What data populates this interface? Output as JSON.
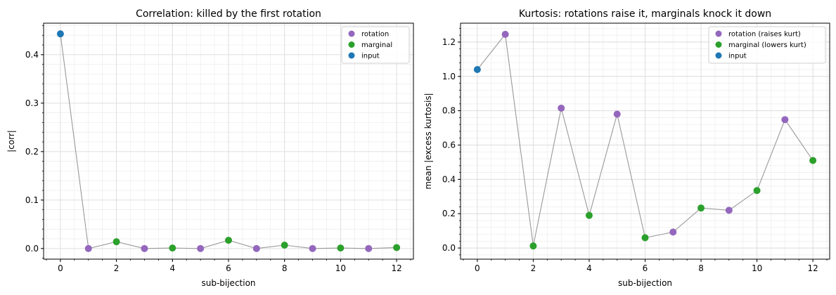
{
  "chart_data": [
    {
      "type": "scatter",
      "title": "Correlation: killed by the first rotation",
      "xlabel": "sub-bijection",
      "ylabel": "|corr|",
      "xlim": [
        -0.6,
        12.6
      ],
      "ylim": [
        -0.022,
        0.465
      ],
      "xticks": [
        0,
        2,
        4,
        6,
        8,
        10,
        12
      ],
      "xtick_labels": [
        "0",
        "2",
        "4",
        "6",
        "8",
        "10",
        "12"
      ],
      "yticks": [
        0.0,
        0.1,
        0.2,
        0.3,
        0.4
      ],
      "ytick_labels": [
        "0.0",
        "0.1",
        "0.2",
        "0.3",
        "0.4"
      ],
      "grid": true,
      "legend": {
        "placement": "top-right",
        "entries": [
          {
            "label": "rotation",
            "color": "#9467bd"
          },
          {
            "label": "marginal",
            "color": "#2ca02c"
          },
          {
            "label": "input",
            "color": "#1f77b4"
          }
        ]
      },
      "line_color": "#999999",
      "x": [
        0,
        1,
        2,
        3,
        4,
        5,
        6,
        7,
        8,
        9,
        10,
        11,
        12
      ],
      "y": [
        0.443,
        0.0,
        0.014,
        0.0,
        0.001,
        0.0,
        0.017,
        0.0,
        0.007,
        0.0,
        0.001,
        0.0,
        0.002
      ],
      "kind": [
        "input",
        "rotation",
        "marginal",
        "rotation",
        "marginal",
        "rotation",
        "marginal",
        "rotation",
        "marginal",
        "rotation",
        "marginal",
        "rotation",
        "marginal"
      ]
    },
    {
      "type": "scatter",
      "title": "Kurtosis: rotations raise it, marginals knock it down",
      "xlabel": "sub-bijection",
      "ylabel": "mean |excess kurtosis|",
      "xlim": [
        -0.6,
        12.6
      ],
      "ylim": [
        -0.065,
        1.31
      ],
      "xticks": [
        0,
        2,
        4,
        6,
        8,
        10,
        12
      ],
      "xtick_labels": [
        "0",
        "2",
        "4",
        "6",
        "8",
        "10",
        "12"
      ],
      "yticks": [
        0.0,
        0.2,
        0.4,
        0.6,
        0.8,
        1.0,
        1.2
      ],
      "ytick_labels": [
        "0.0",
        "0.2",
        "0.4",
        "0.6",
        "0.8",
        "1.0",
        "1.2"
      ],
      "grid": true,
      "legend": {
        "placement": "top-right",
        "entries": [
          {
            "label": "rotation (raises kurt)",
            "color": "#9467bd"
          },
          {
            "label": "marginal (lowers kurt)",
            "color": "#2ca02c"
          },
          {
            "label": "input",
            "color": "#1f77b4"
          }
        ]
      },
      "line_color": "#999999",
      "x": [
        0,
        1,
        2,
        3,
        4,
        5,
        6,
        7,
        8,
        9,
        10,
        11,
        12
      ],
      "y": [
        1.04,
        1.245,
        0.012,
        0.815,
        0.19,
        0.78,
        0.06,
        0.093,
        0.233,
        0.22,
        0.335,
        0.748,
        0.51
      ],
      "kind": [
        "input",
        "rotation",
        "marginal",
        "rotation",
        "marginal",
        "rotation",
        "marginal",
        "rotation",
        "marginal",
        "rotation",
        "marginal",
        "rotation",
        "marginal"
      ]
    }
  ]
}
